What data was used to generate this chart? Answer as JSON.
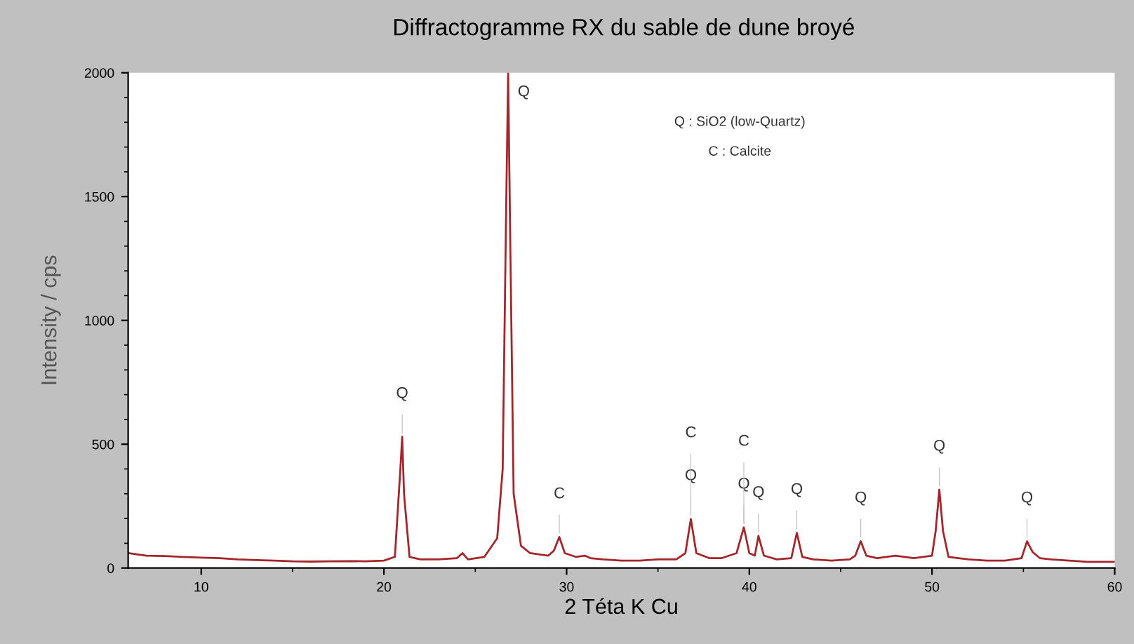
{
  "chart_data": {
    "type": "line",
    "title": "Diffractogramme RX du sable de dune broyé",
    "xlabel": "2 Téta K Cu",
    "ylabel": "Intensity / cps",
    "xlim": [
      6,
      60
    ],
    "ylim": [
      0,
      2000
    ],
    "xticks": [
      10,
      20,
      30,
      40,
      50,
      60
    ],
    "yticks": [
      0,
      500,
      1000,
      1500,
      2000
    ],
    "grid": false,
    "legend": false,
    "marker": "none",
    "line_style": "solid",
    "series": [
      {
        "color": "#a3262c",
        "x": [
          6,
          7,
          8,
          9,
          10,
          11,
          12,
          13,
          14,
          15,
          16,
          17,
          18,
          19,
          20,
          20.6,
          20.9,
          21.0,
          21.1,
          21.4,
          22,
          23,
          24,
          24.3,
          24.6,
          25.5,
          26.2,
          26.5,
          26.7,
          26.8,
          26.9,
          27.1,
          27.5,
          28,
          29,
          29.3,
          29.6,
          29.9,
          30.5,
          31,
          31.3,
          32,
          33,
          34,
          35,
          36,
          36.5,
          36.8,
          37.1,
          37.8,
          38.5,
          39.3,
          39.7,
          40.0,
          40.3,
          40.5,
          40.8,
          41.5,
          42.3,
          42.6,
          42.9,
          43.5,
          44.5,
          45.5,
          45.8,
          46.1,
          46.4,
          47,
          48,
          49,
          50,
          50.2,
          50.4,
          50.6,
          50.9,
          52,
          53,
          54,
          54.9,
          55.2,
          55.5,
          55.9,
          56.5,
          57.5,
          58.5,
          60
        ],
        "values": [
          60,
          50,
          48,
          45,
          42,
          40,
          35,
          32,
          30,
          27,
          26,
          27,
          28,
          27,
          30,
          45,
          400,
          530,
          300,
          45,
          35,
          35,
          40,
          60,
          35,
          45,
          120,
          400,
          1500,
          2000,
          1400,
          300,
          90,
          60,
          50,
          70,
          125,
          60,
          45,
          50,
          40,
          35,
          30,
          30,
          35,
          35,
          60,
          198,
          60,
          40,
          40,
          60,
          164,
          60,
          50,
          130,
          50,
          35,
          40,
          142,
          45,
          35,
          30,
          35,
          50,
          108,
          50,
          40,
          50,
          40,
          50,
          150,
          317,
          150,
          45,
          35,
          30,
          30,
          40,
          108,
          65,
          40,
          35,
          30,
          25,
          25
        ]
      }
    ],
    "annotations": [
      {
        "text": "Q",
        "x": 21.0,
        "y": 530
      },
      {
        "text": "Q",
        "x": 26.8,
        "y": 2000
      },
      {
        "text": "C",
        "x": 29.6,
        "y": 125
      },
      {
        "text": "Q",
        "x": 36.8,
        "y": 198
      },
      {
        "text": "C",
        "x": 36.8,
        "y": 198
      },
      {
        "text": "Q",
        "x": 39.7,
        "y": 164
      },
      {
        "text": "C",
        "x": 39.7,
        "y": 164
      },
      {
        "text": "Q",
        "x": 40.5,
        "y": 130
      },
      {
        "text": "Q",
        "x": 42.6,
        "y": 142
      },
      {
        "text": "Q",
        "x": 46.1,
        "y": 108
      },
      {
        "text": "Q",
        "x": 50.4,
        "y": 317
      },
      {
        "text": "Q",
        "x": 55.2,
        "y": 108
      },
      "Q : SiO2 (low-Quartz)",
      "C : Calcite"
    ]
  }
}
